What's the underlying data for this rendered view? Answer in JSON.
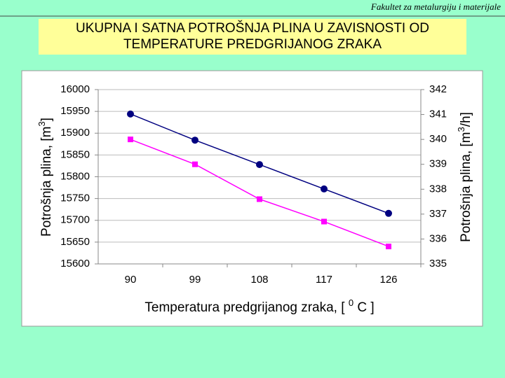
{
  "header": "Fakultet za metalurgiju i materijale",
  "chart_data": {
    "type": "line",
    "title": [
      "UKUPNA I SATNA POTROŠNJA PLINA U ZAVISNOSTI OD",
      "TEMPERATURE PREDGRIJANOG ZRAKA"
    ],
    "x_label": [
      "Temperatura predgrijanog zraka, [ ",
      "0",
      " C ]"
    ],
    "y_label": [
      "Potrošnja plina, [m",
      "3",
      "]"
    ],
    "y2_label": [
      "Potrošnja plina, [m",
      "3",
      "/h]"
    ],
    "categories": [
      "90",
      "99",
      "108",
      "117",
      "126"
    ],
    "series": [
      {
        "color": "#000080",
        "marker": "circle",
        "values": [
          15944,
          15884,
          15828,
          15772,
          15716
        ]
      },
      {
        "color": "#ff00ff",
        "marker": "square",
        "axis": "y2",
        "values": [
          340.0,
          339.0,
          337.6,
          336.7,
          335.7
        ]
      }
    ],
    "ylim": [
      15600,
      16000
    ],
    "yticks": [
      15600,
      15650,
      15700,
      15750,
      15800,
      15850,
      15900,
      15950,
      16000
    ],
    "y2lim": [
      335,
      342
    ],
    "y2ticks": [
      335,
      336,
      337,
      338,
      339,
      340,
      341,
      342
    ],
    "grid": true
  }
}
